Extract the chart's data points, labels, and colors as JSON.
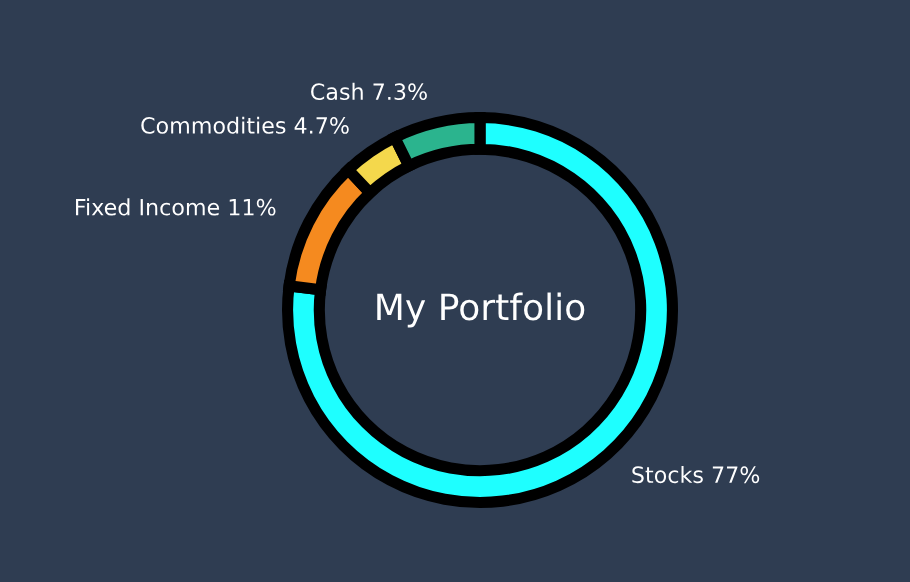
{
  "chart_data": {
    "type": "donut",
    "title": "My Portfolio",
    "categories": [
      "Stocks",
      "Fixed Income",
      "Commodities",
      "Cash"
    ],
    "values": [
      77,
      11,
      4.7,
      7.3
    ],
    "value_labels": [
      "77%",
      "11%",
      "4.7%",
      "7.3%"
    ],
    "colors": [
      "#1effff",
      "#f58a1f",
      "#f4d84c",
      "#2bb48e"
    ],
    "legend": false
  }
}
